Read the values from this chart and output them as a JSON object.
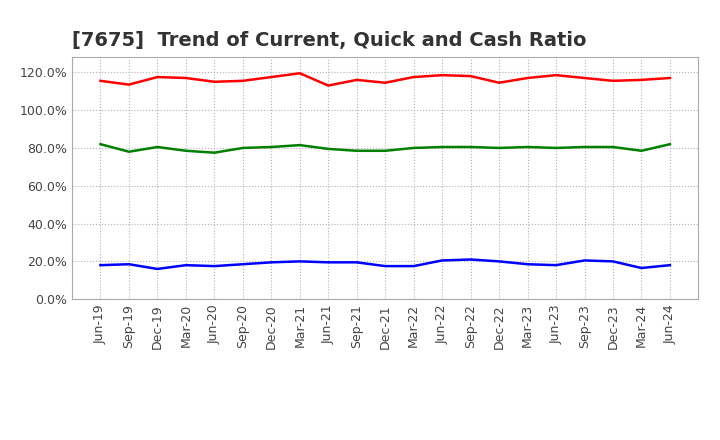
{
  "title": "[7675]  Trend of Current, Quick and Cash Ratio",
  "x_labels": [
    "Jun-19",
    "Sep-19",
    "Dec-19",
    "Mar-20",
    "Jun-20",
    "Sep-20",
    "Dec-20",
    "Mar-21",
    "Jun-21",
    "Sep-21",
    "Dec-21",
    "Mar-22",
    "Jun-22",
    "Sep-22",
    "Dec-22",
    "Mar-23",
    "Jun-23",
    "Sep-23",
    "Dec-23",
    "Mar-24",
    "Jun-24"
  ],
  "current_ratio": [
    115.5,
    113.5,
    117.5,
    117.0,
    115.0,
    115.5,
    117.5,
    119.5,
    113.0,
    116.0,
    114.5,
    117.5,
    118.5,
    118.0,
    114.5,
    117.0,
    118.5,
    117.0,
    115.5,
    116.0,
    117.0
  ],
  "quick_ratio": [
    82.0,
    78.0,
    80.5,
    78.5,
    77.5,
    80.0,
    80.5,
    81.5,
    79.5,
    78.5,
    78.5,
    80.0,
    80.5,
    80.5,
    80.0,
    80.5,
    80.0,
    80.5,
    80.5,
    78.5,
    82.0
  ],
  "cash_ratio": [
    18.0,
    18.5,
    16.0,
    18.0,
    17.5,
    18.5,
    19.5,
    20.0,
    19.5,
    19.5,
    17.5,
    17.5,
    20.5,
    21.0,
    20.0,
    18.5,
    18.0,
    20.5,
    20.0,
    16.5,
    18.0
  ],
  "current_color": "#FF0000",
  "quick_color": "#008000",
  "cash_color": "#0000FF",
  "ylim": [
    0,
    128
  ],
  "yticks": [
    0,
    20,
    40,
    60,
    80,
    100,
    120
  ],
  "background_color": "#FFFFFF",
  "plot_bg_color": "#FFFFFF",
  "grid_color": "#AAAAAA",
  "title_fontsize": 14,
  "tick_fontsize": 9,
  "legend_fontsize": 10,
  "line_width": 1.8
}
